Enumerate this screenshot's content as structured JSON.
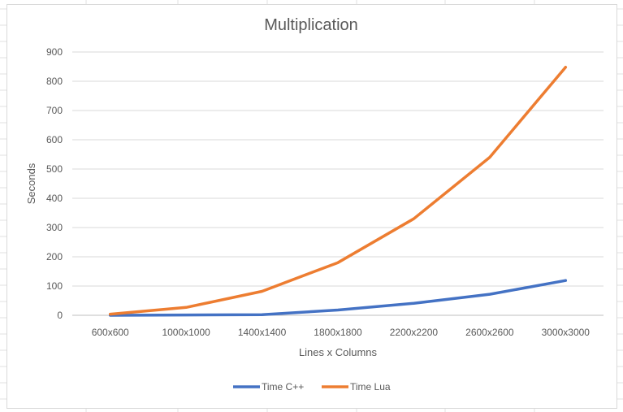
{
  "chart_data": {
    "type": "line",
    "title": "Multiplication",
    "xlabel": "Lines x Columns",
    "ylabel": "Seconds",
    "categories": [
      "600x600",
      "1000x1000",
      "1400x1400",
      "1800x1800",
      "2200x2200",
      "2600x2600",
      "3000x3000"
    ],
    "ylim": [
      0,
      900
    ],
    "yticks": [
      0,
      100,
      200,
      300,
      400,
      500,
      600,
      700,
      800,
      900
    ],
    "grid": true,
    "legend_position": "bottom",
    "series": [
      {
        "name": "Time C++",
        "color": "#4472c4",
        "values": [
          0,
          1,
          2,
          18,
          41,
          72,
          119
        ]
      },
      {
        "name": "Time Lua",
        "color": "#ed7d31",
        "values": [
          4,
          27,
          82,
          180,
          330,
          540,
          848
        ]
      }
    ]
  }
}
